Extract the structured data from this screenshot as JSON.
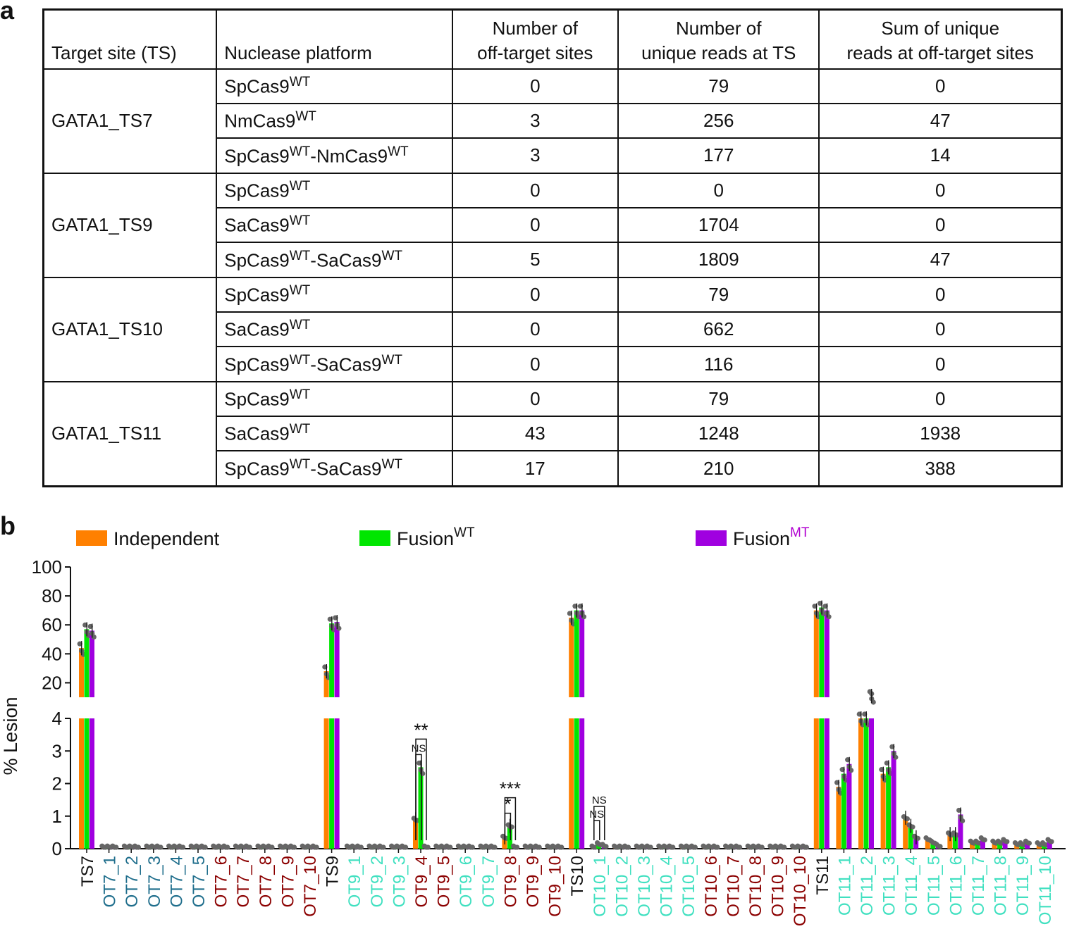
{
  "panel_a_label": "a",
  "panel_b_label": "b",
  "table": {
    "headers": [
      [
        "Target site (TS)"
      ],
      [
        "Nuclease platform"
      ],
      [
        "Number of",
        "off-target sites"
      ],
      [
        "Number of",
        "unique reads at TS"
      ],
      [
        "Sum of unique",
        "reads at off-target sites"
      ]
    ],
    "groups": [
      {
        "ts": "GATA1_TS7",
        "rows": [
          {
            "platform": [
              [
                "SpCas9",
                "WT"
              ]
            ],
            "off": "0",
            "ts_reads": "79",
            "sum": "0"
          },
          {
            "platform": [
              [
                "NmCas9",
                "WT"
              ]
            ],
            "off": "3",
            "ts_reads": "256",
            "sum": "47"
          },
          {
            "platform": [
              [
                "SpCas9",
                "WT"
              ],
              [
                "-NmCas9",
                "WT"
              ]
            ],
            "off": "3",
            "ts_reads": "177",
            "sum": "14"
          }
        ]
      },
      {
        "ts": "GATA1_TS9",
        "rows": [
          {
            "platform": [
              [
                "SpCas9",
                "WT"
              ]
            ],
            "off": "0",
            "ts_reads": "0",
            "sum": "0"
          },
          {
            "platform": [
              [
                "SaCas9",
                "WT"
              ]
            ],
            "off": "0",
            "ts_reads": "1704",
            "sum": "0"
          },
          {
            "platform": [
              [
                "SpCas9",
                "WT"
              ],
              [
                "-SaCas9",
                "WT"
              ]
            ],
            "off": "5",
            "ts_reads": "1809",
            "sum": "47"
          }
        ]
      },
      {
        "ts": "GATA1_TS10",
        "rows": [
          {
            "platform": [
              [
                "SpCas9",
                "WT"
              ]
            ],
            "off": "0",
            "ts_reads": "79",
            "sum": "0"
          },
          {
            "platform": [
              [
                "SaCas9",
                "WT"
              ]
            ],
            "off": "0",
            "ts_reads": "662",
            "sum": "0"
          },
          {
            "platform": [
              [
                "SpCas9",
                "WT"
              ],
              [
                "-SaCas9",
                "WT"
              ]
            ],
            "off": "0",
            "ts_reads": "116",
            "sum": "0"
          }
        ]
      },
      {
        "ts": "GATA1_TS11",
        "rows": [
          {
            "platform": [
              [
                "SpCas9",
                "WT"
              ]
            ],
            "off": "0",
            "ts_reads": "79",
            "sum": "0"
          },
          {
            "platform": [
              [
                "SaCas9",
                "WT"
              ]
            ],
            "off": "43",
            "ts_reads": "1248",
            "sum": "1938"
          },
          {
            "platform": [
              [
                "SpCas9",
                "WT"
              ],
              [
                "-SaCas9",
                "WT"
              ]
            ],
            "off": "17",
            "ts_reads": "210",
            "sum": "388"
          }
        ]
      }
    ]
  },
  "chart_data": {
    "type": "bar",
    "ylabel": "% Lesion",
    "y_axis_break": {
      "lower_range": [
        0,
        4
      ],
      "upper_range": [
        10,
        100
      ]
    },
    "lower_ticks": [
      0,
      1,
      2,
      3,
      4
    ],
    "upper_ticks": [
      20,
      40,
      60,
      80,
      100
    ],
    "legend": [
      {
        "key": "independent",
        "base": "Independent",
        "sup": "",
        "color": "#FF8000"
      },
      {
        "key": "fusion_wt",
        "base": "Fusion",
        "sup": "WT",
        "color": "#00E600",
        "sup_color": "#111111"
      },
      {
        "key": "fusion_mt",
        "base": "Fusion",
        "sup": "MT",
        "color": "#A000E0",
        "sup_color": "#B000D0"
      }
    ],
    "categories": [
      "TS7",
      "OT7_1",
      "OT7_2",
      "OT7_3",
      "OT7_4",
      "OT7_5",
      "OT7_6",
      "OT7_7",
      "OT7_8",
      "OT7_9",
      "OT7_10",
      "TS9",
      "OT9_1",
      "OT9_2",
      "OT9_3",
      "OT9_4",
      "OT9_5",
      "OT9_6",
      "OT9_7",
      "OT9_8",
      "OT9_9",
      "OT9_10",
      "TS10",
      "OT10_1",
      "OT10_2",
      "OT10_3",
      "OT10_4",
      "OT10_5",
      "OT10_6",
      "OT10_7",
      "OT10_8",
      "OT10_9",
      "OT10_10",
      "TS11",
      "OT11_1",
      "OT11_2",
      "OT11_3",
      "OT11_4",
      "OT11_5",
      "OT11_6",
      "OT11_7",
      "OT11_8",
      "OT11_9",
      "OT11_10"
    ],
    "category_colors": [
      "#111111",
      "#1F6E8C",
      "#1F6E8C",
      "#1F6E8C",
      "#1F6E8C",
      "#1F6E8C",
      "#8B0000",
      "#8B0000",
      "#8B0000",
      "#8B0000",
      "#8B0000",
      "#111111",
      "#40E0C0",
      "#40E0C0",
      "#40E0C0",
      "#8B0000",
      "#8B0000",
      "#40E0C0",
      "#40E0C0",
      "#8B0000",
      "#8B0000",
      "#8B0000",
      "#111111",
      "#40E0C0",
      "#40E0C0",
      "#40E0C0",
      "#40E0C0",
      "#40E0C0",
      "#8B0000",
      "#8B0000",
      "#8B0000",
      "#8B0000",
      "#8B0000",
      "#111111",
      "#40E0C0",
      "#40E0C0",
      "#40E0C0",
      "#40E0C0",
      "#40E0C0",
      "#40E0C0",
      "#40E0C0",
      "#40E0C0",
      "#40E0C0",
      "#40E0C0"
    ],
    "series": [
      {
        "name": "Independent",
        "values": [
          44,
          0.05,
          0.05,
          0.05,
          0.05,
          0.05,
          0.05,
          0.05,
          0.05,
          0.05,
          0.05,
          28,
          0.05,
          0.05,
          0.05,
          0.9,
          0.05,
          0.05,
          0.05,
          0.35,
          0.05,
          0.05,
          65,
          0.05,
          0.05,
          0.05,
          0.05,
          0.05,
          0.05,
          0.05,
          0.05,
          0.05,
          0.05,
          70,
          1.9,
          4.0,
          2.3,
          0.95,
          0.3,
          0.45,
          0.2,
          0.2,
          0.15,
          0.15
        ]
      },
      {
        "name": "FusionWT",
        "values": [
          57,
          0.05,
          0.05,
          0.05,
          0.05,
          0.05,
          0.05,
          0.05,
          0.05,
          0.05,
          0.05,
          61,
          0.05,
          0.05,
          0.05,
          2.5,
          0.05,
          0.05,
          0.05,
          0.7,
          0.05,
          0.05,
          70,
          0.15,
          0.05,
          0.05,
          0.05,
          0.05,
          0.05,
          0.05,
          0.05,
          0.05,
          0.05,
          72,
          2.3,
          4.0,
          2.5,
          0.7,
          0.2,
          0.45,
          0.2,
          0.2,
          0.15,
          0.15
        ]
      },
      {
        "name": "FusionMT",
        "values": [
          56,
          0.05,
          0.05,
          0.05,
          0.05,
          0.05,
          0.05,
          0.05,
          0.05,
          0.05,
          0.05,
          62,
          0.05,
          0.05,
          0.05,
          0.05,
          0.05,
          0.05,
          0.05,
          0.05,
          0.05,
          0.05,
          70,
          0.1,
          0.05,
          0.05,
          0.05,
          0.05,
          0.05,
          0.05,
          0.05,
          0.05,
          0.05,
          70,
          2.6,
          6.0,
          3.0,
          0.35,
          0.1,
          1.05,
          0.3,
          0.25,
          0.2,
          0.25
        ]
      }
    ],
    "annotations": [
      {
        "text": "**",
        "category": "OT9_4",
        "pair": "independent-fusion_mt"
      },
      {
        "text": "NS",
        "category": "OT9_4",
        "pair": "independent-fusion_wt"
      },
      {
        "text": "***",
        "category": "OT9_8",
        "pair": "independent-fusion_mt"
      },
      {
        "text": "*",
        "category": "OT9_8",
        "pair": "independent-fusion_wt"
      },
      {
        "text": "NS",
        "category": "OT10_1",
        "pair": "independent-fusion_mt"
      },
      {
        "text": "NS",
        "category": "OT10_1",
        "pair": "independent-fusion_wt"
      }
    ]
  }
}
